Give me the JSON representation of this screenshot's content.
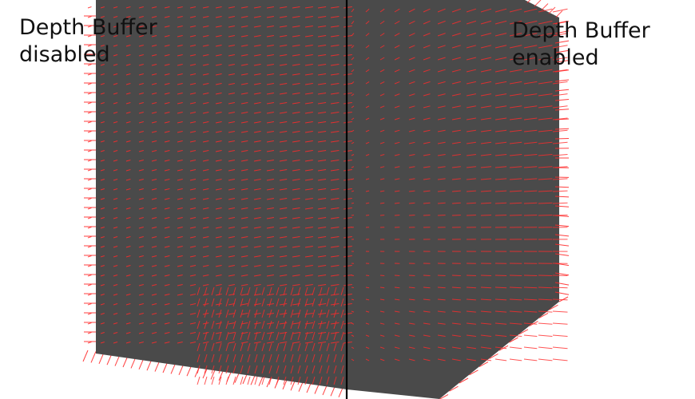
{
  "labels": {
    "left": "Depth Buffer\ndisabled",
    "right": "Depth Buffer\nenabled"
  },
  "colors": {
    "background": "#ffffff",
    "cube_face": "#4a4a4a",
    "normals": "#ff2a2a",
    "divider": "#000000",
    "text": "#111111"
  }
}
